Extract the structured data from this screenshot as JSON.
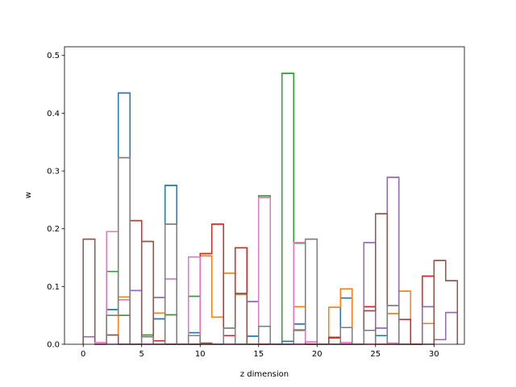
{
  "chart_data": {
    "type": "step",
    "xlabel": "z dimension",
    "ylabel": "w",
    "xlim": [
      -1.6,
      32.6
    ],
    "ylim": [
      0,
      0.515
    ],
    "xticks": [
      "0",
      "5",
      "10",
      "15",
      "20",
      "25",
      "30"
    ],
    "yticks": [
      "0.0",
      "0.1",
      "0.2",
      "0.3",
      "0.4",
      "0.5"
    ],
    "grid": false,
    "colors": {
      "blue": "#1f77b4",
      "orange": "#ff7f0e",
      "green": "#2ca02c",
      "red": "#d62728",
      "purple": "#9467bd",
      "brown": "#8c564b",
      "pink": "#e377c2",
      "gray": "#7f7f7f"
    },
    "series": [
      {
        "color": "blue",
        "steps": [
          [
            2,
            3,
            0.06
          ],
          [
            3,
            4,
            0.435
          ],
          [
            6,
            7,
            0.044
          ],
          [
            7,
            8,
            0.275
          ],
          [
            9,
            10,
            0.02
          ],
          [
            14,
            15,
            0.014
          ],
          [
            17,
            18,
            0.005
          ],
          [
            18,
            19,
            0.035
          ],
          [
            21,
            22,
            0.011
          ],
          [
            22,
            23,
            0.08
          ],
          [
            25,
            26,
            0.015
          ]
        ]
      },
      {
        "color": "orange",
        "steps": [
          [
            3,
            4,
            0.082
          ],
          [
            6,
            7,
            0.054
          ],
          [
            10,
            11,
            0.153
          ],
          [
            11,
            12,
            0.047
          ],
          [
            12,
            13,
            0.123
          ],
          [
            13,
            14,
            0.086
          ],
          [
            18,
            19,
            0.065
          ],
          [
            21,
            22,
            0.064
          ],
          [
            22,
            23,
            0.096
          ],
          [
            26,
            27,
            0.053
          ],
          [
            27,
            28,
            0.092
          ],
          [
            29,
            30,
            0.036
          ]
        ]
      },
      {
        "color": "green",
        "steps": [
          [
            2,
            3,
            0.126
          ],
          [
            3,
            4,
            0.05
          ],
          [
            5,
            6,
            0.016
          ],
          [
            7,
            8,
            0.051
          ],
          [
            9,
            10,
            0.083
          ],
          [
            15,
            16,
            0.257
          ],
          [
            17,
            18,
            0.469
          ],
          [
            18,
            19,
            0.175
          ]
        ]
      },
      {
        "color": "red",
        "steps": [
          [
            4,
            5,
            0.214
          ],
          [
            6,
            7,
            0.006
          ],
          [
            10,
            11,
            0.157
          ],
          [
            11,
            12,
            0.208
          ],
          [
            12,
            13,
            0.015
          ],
          [
            13,
            14,
            0.167
          ],
          [
            21,
            22,
            0.012
          ],
          [
            24,
            25,
            0.065
          ],
          [
            27,
            28,
            0.043
          ],
          [
            29,
            30,
            0.118
          ]
        ]
      },
      {
        "color": "purple",
        "steps": [
          [
            0,
            1,
            0.013
          ],
          [
            4,
            5,
            0.093
          ],
          [
            6,
            7,
            0.081
          ],
          [
            14,
            15,
            0.074
          ],
          [
            24,
            25,
            0.176
          ],
          [
            25,
            26,
            0.028
          ],
          [
            26,
            27,
            0.289
          ],
          [
            29,
            30,
            0.065
          ],
          [
            30,
            31,
            0.008
          ],
          [
            31,
            32,
            0.055
          ]
        ]
      },
      {
        "color": "brown",
        "steps": [
          [
            0,
            1,
            0.182
          ],
          [
            2,
            3,
            0.016
          ],
          [
            5,
            6,
            0.178
          ],
          [
            10,
            11,
            0.002
          ],
          [
            13,
            14,
            0.088
          ],
          [
            18,
            19,
            0.024
          ],
          [
            24,
            25,
            0.058
          ],
          [
            25,
            26,
            0.226
          ],
          [
            30,
            31,
            0.145
          ],
          [
            31,
            32,
            0.11
          ]
        ]
      },
      {
        "color": "pink",
        "steps": [
          [
            1,
            2,
            0.003
          ],
          [
            2,
            3,
            0.195
          ],
          [
            3,
            4,
            0.077
          ],
          [
            7,
            8,
            0.113
          ],
          [
            9,
            10,
            0.151
          ],
          [
            15,
            16,
            0.254
          ],
          [
            18,
            19,
            0.176
          ],
          [
            19,
            20,
            0.004
          ],
          [
            22,
            23,
            0.003
          ],
          [
            26,
            27,
            0.002
          ]
        ]
      },
      {
        "color": "gray",
        "steps": [
          [
            2,
            3,
            0.05
          ],
          [
            3,
            4,
            0.323
          ],
          [
            5,
            6,
            0.013
          ],
          [
            7,
            8,
            0.208
          ],
          [
            9,
            10,
            0.015
          ],
          [
            12,
            13,
            0.028
          ],
          [
            15,
            16,
            0.031
          ],
          [
            18,
            19,
            0.025
          ],
          [
            19,
            20,
            0.182
          ],
          [
            22,
            23,
            0.029
          ],
          [
            24,
            25,
            0.024
          ],
          [
            26,
            27,
            0.067
          ]
        ]
      }
    ]
  }
}
